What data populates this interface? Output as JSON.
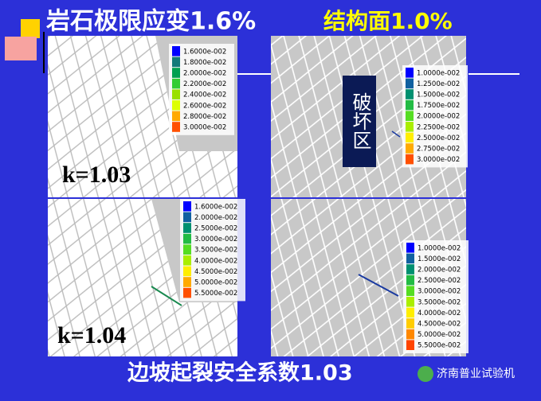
{
  "header": {
    "title_left": "岩石极限应变1.6%",
    "title_right": "结构面1.0%"
  },
  "panels": [
    {
      "label": "k=1.03",
      "legend": {
        "labels": [
          "1.6000e-002",
          "1.8000e-002",
          "2.0000e-002",
          "2.2000e-002",
          "2.4000e-002",
          "2.6000e-002",
          "2.8000e-002",
          "3.0000e-002"
        ],
        "colors": [
          "#0000ff",
          "#137a7a",
          "#00a050",
          "#33cc33",
          "#99e000",
          "#ddff00",
          "#ffaa00",
          "#ff5000"
        ]
      }
    },
    {
      "tag": "破坏区",
      "legend": {
        "labels": [
          "1.0000e-002",
          "1.2500e-002",
          "1.5000e-002",
          "1.7500e-002",
          "2.0000e-002",
          "2.2500e-002",
          "2.5000e-002",
          "2.7500e-002",
          "3.0000e-002"
        ],
        "colors": [
          "#0000ff",
          "#1060a0",
          "#009070",
          "#22bb44",
          "#55dd22",
          "#aaee00",
          "#ffee00",
          "#ffaa00",
          "#ff5000"
        ]
      }
    },
    {
      "label": "k=1.04",
      "legend": {
        "labels": [
          "1.6000e-002",
          "2.0000e-002",
          "2.5000e-002",
          "3.0000e-002",
          "3.5000e-002",
          "4.0000e-002",
          "4.5000e-002",
          "5.0000e-002",
          "5.5000e-002"
        ],
        "colors": [
          "#0000ff",
          "#1060a0",
          "#009070",
          "#22bb44",
          "#55dd22",
          "#aaee00",
          "#ffee00",
          "#ffaa00",
          "#ff5000"
        ]
      }
    },
    {
      "legend": {
        "labels": [
          "1.0000e-002",
          "1.5000e-002",
          "2.0000e-002",
          "2.5000e-002",
          "3.0000e-002",
          "3.5000e-002",
          "4.0000e-002",
          "4.5000e-002",
          "5.0000e-002",
          "5.5000e-002"
        ],
        "colors": [
          "#0000ff",
          "#1060a0",
          "#009070",
          "#22bb44",
          "#55dd22",
          "#aaee00",
          "#ffee00",
          "#ffcc00",
          "#ff8800",
          "#ff4400"
        ]
      }
    }
  ],
  "footer": {
    "text": "边坡起裂安全系数1.03",
    "watermark": "济南普业试验机"
  }
}
